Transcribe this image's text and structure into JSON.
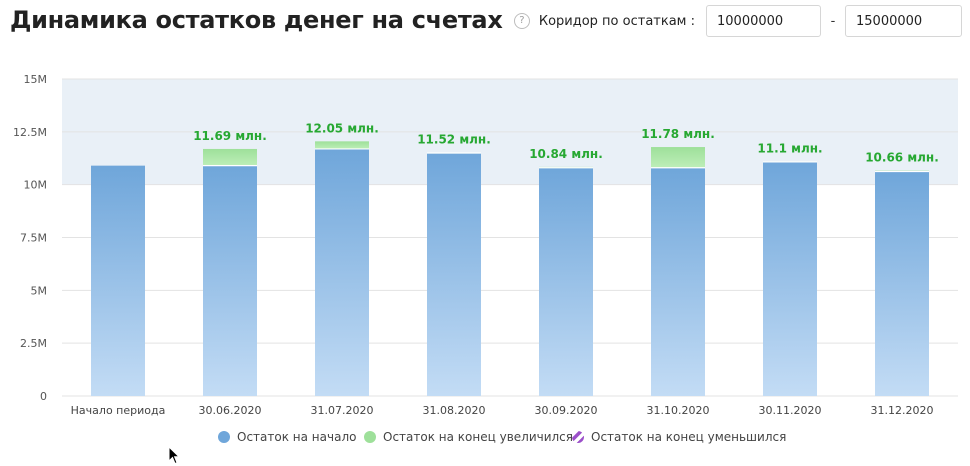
{
  "title": "Динамика остатков денег на счетах",
  "corridor": {
    "help_icon": "question-icon",
    "help_glyph": "?",
    "label": "Коридор по остаткам :",
    "from": "10000000",
    "to": "15000000",
    "separator": "-"
  },
  "chart_data": {
    "type": "bar",
    "stacked": true,
    "categories": [
      "Начало периода",
      "30.06.2020",
      "31.07.2020",
      "31.08.2020",
      "30.09.2020",
      "31.10.2020",
      "30.11.2020",
      "31.12.2020"
    ],
    "start_balance": [
      10.9,
      10.9,
      11.69,
      11.5,
      10.8,
      10.8,
      11.08,
      10.62
    ],
    "end_balance": [
      null,
      11.69,
      12.05,
      11.52,
      10.84,
      11.78,
      11.1,
      10.66
    ],
    "data_labels": [
      "",
      "11.69 млн.",
      "12.05 млн.",
      "11.52 млн.",
      "10.84 млн.",
      "11.78 млн.",
      "11.1 млн.",
      "10.66 млн."
    ],
    "unit": "млн.",
    "ylim": [
      0,
      15
    ],
    "yticks": [
      0,
      2.5,
      5,
      7.5,
      10,
      12.5,
      15
    ],
    "ytick_labels": [
      "0",
      "2.5M",
      "5M",
      "7.5M",
      "10M",
      "12.5M",
      "15M"
    ],
    "corridor_band": [
      10,
      15
    ],
    "grid": true,
    "legend_position": "bottom",
    "series": [
      {
        "name": "Остаток на начало",
        "color": "#6fa6da"
      },
      {
        "name": "Остаток на конец увеличился",
        "color": "#9ee09a"
      },
      {
        "name": "Остаток на конец уменьшился",
        "color": "#9b4fc9"
      }
    ],
    "colors": {
      "increase_label": "#27a832",
      "decrease_label": "#4a3fb0",
      "band": "#e9f0f7",
      "grid": "#e3e3e3"
    }
  }
}
